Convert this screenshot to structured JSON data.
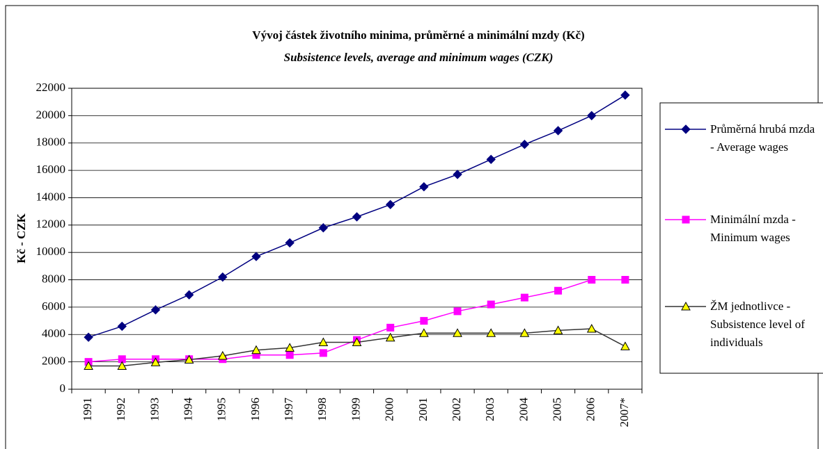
{
  "chart_data": {
    "type": "line",
    "title": "Vývoj částek životního minima, průměrné a minimální mzdy (Kč)",
    "subtitle": "Subsistence levels, average and minimum wages (CZK)",
    "y_label": "Kč - CZK",
    "categories": [
      "1991",
      "1992",
      "1993",
      "1994",
      "1995",
      "1996",
      "1997",
      "1998",
      "1999",
      "2000",
      "2001",
      "2002",
      "2003",
      "2004",
      "2005",
      "2006",
      "2007*"
    ],
    "series": [
      {
        "name": "Průměrná hrubá mzda - Average wages",
        "color": "#000080",
        "marker": "diamond",
        "values": [
          3800,
          4600,
          5800,
          6900,
          8200,
          9700,
          10700,
          11800,
          12600,
          13500,
          14800,
          15700,
          16800,
          17900,
          18900,
          20000,
          21500
        ]
      },
      {
        "name": "Minimální mzda - Minimum wages",
        "color": "#ff00ff",
        "marker": "square",
        "values": [
          2000,
          2200,
          2200,
          2200,
          2200,
          2500,
          2500,
          2650,
          3600,
          4500,
          5000,
          5700,
          6200,
          6700,
          7200,
          8000,
          8000
        ]
      },
      {
        "name": "ŽM jednotlivce - Subsistence level of individuals",
        "color": "#ffff00",
        "line_color": "#333333",
        "marker": "triangle",
        "values": [
          1700,
          1700,
          1960,
          2160,
          2440,
          2860,
          3030,
          3430,
          3430,
          3770,
          4100,
          4100,
          4100,
          4100,
          4300,
          4420,
          3130
        ]
      }
    ],
    "ylim": [
      0,
      22000
    ],
    "yticks": [
      0,
      2000,
      4000,
      6000,
      8000,
      10000,
      12000,
      14000,
      16000,
      18000,
      20000,
      22000
    ],
    "grid": true,
    "legend": "right"
  }
}
